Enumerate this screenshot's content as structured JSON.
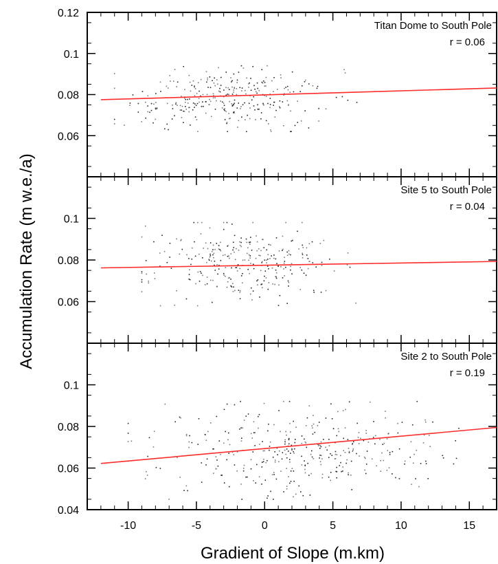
{
  "chart_data": {
    "type": "scatter",
    "xlabel": "Gradient of Slope (m.km)",
    "ylabel": "Accumulation Rate (m w.e./a)",
    "xlim": [
      -13,
      17
    ],
    "x_ticks": [
      -10,
      -5,
      0,
      5,
      10,
      15
    ],
    "x_tick_labels": [
      "-10",
      "-5",
      "0",
      "5",
      "10",
      "15"
    ],
    "grid": false,
    "colors": {
      "points": "#333333",
      "fit_line": "#ff2a2a",
      "axes": "#000000"
    },
    "panels": [
      {
        "title": "Titan Dome to South Pole",
        "r_label": "r = 0.06",
        "ylim": [
          0.04,
          0.12
        ],
        "y_ticks": [
          0.06,
          0.08,
          0.1,
          0.12
        ],
        "y_tick_labels": [
          "0.06",
          "0.08",
          "0.1",
          "0.12"
        ],
        "fit_line": {
          "x": [
            -12,
            17
          ],
          "y": [
            0.0775,
            0.0832
          ]
        },
        "scatter_cloud": {
          "x_range": [
            -11,
            7
          ],
          "y_range": [
            0.062,
            0.094
          ],
          "count": 320,
          "seed": 11
        }
      },
      {
        "title": "Site 5 to South Pole",
        "r_label": "r = 0.04",
        "ylim": [
          0.04,
          0.12
        ],
        "y_ticks": [
          0.06,
          0.08,
          0.1
        ],
        "y_tick_labels": [
          "0.06",
          "0.08",
          "0.1"
        ],
        "fit_line": {
          "x": [
            -12,
            17
          ],
          "y": [
            0.0762,
            0.0793
          ]
        },
        "scatter_cloud": {
          "x_range": [
            -9,
            7
          ],
          "y_range": [
            0.058,
            0.098
          ],
          "count": 300,
          "seed": 23
        }
      },
      {
        "title": "Site 2 to South Pole",
        "r_label": "r = 0.19",
        "ylim": [
          0.04,
          0.12
        ],
        "y_ticks": [
          0.04,
          0.06,
          0.08,
          0.1
        ],
        "y_tick_labels": [
          "0.04",
          "0.06",
          "0.08",
          "0.1"
        ],
        "fit_line": {
          "x": [
            -12,
            17
          ],
          "y": [
            0.0622,
            0.0795
          ]
        },
        "scatter_cloud": {
          "x_range": [
            -10,
            17
          ],
          "y_range": [
            0.045,
            0.092
          ],
          "count": 380,
          "seed": 37
        }
      }
    ]
  }
}
